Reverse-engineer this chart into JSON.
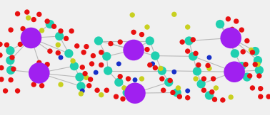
{
  "bg_color": "#f0f0f0",
  "bond_color": "#b8b8b8",
  "bond_lw": 0.8,
  "figsize": [
    3.78,
    1.62
  ],
  "dpi": 100,
  "xlim": [
    0.0,
    1.0
  ],
  "ylim": [
    0.0,
    1.0
  ],
  "atoms": {
    "La": {
      "color": "#a020f0",
      "ms": 12,
      "zorder": 8
    },
    "P": {
      "color": "#20d0b0",
      "ms": 5,
      "zorder": 6
    },
    "O": {
      "color": "#e81010",
      "ms": 3,
      "zorder": 7
    },
    "S": {
      "color": "#c8d020",
      "ms": 3,
      "zorder": 7
    },
    "N": {
      "color": "#1830c8",
      "ms": 2.8,
      "zorder": 7
    }
  },
  "La": [
    [
      0.115,
      0.67
    ],
    [
      0.145,
      0.365
    ],
    [
      0.495,
      0.565
    ],
    [
      0.5,
      0.19
    ],
    [
      0.855,
      0.67
    ],
    [
      0.868,
      0.375
    ]
  ],
  "P": [
    [
      0.038,
      0.56
    ],
    [
      0.038,
      0.475
    ],
    [
      0.04,
      0.39
    ],
    [
      0.185,
      0.79
    ],
    [
      0.22,
      0.685
    ],
    [
      0.255,
      0.535
    ],
    [
      0.275,
      0.425
    ],
    [
      0.295,
      0.33
    ],
    [
      0.3,
      0.25
    ],
    [
      0.365,
      0.645
    ],
    [
      0.395,
      0.51
    ],
    [
      0.4,
      0.385
    ],
    [
      0.44,
      0.285
    ],
    [
      0.47,
      0.195
    ],
    [
      0.555,
      0.645
    ],
    [
      0.575,
      0.515
    ],
    [
      0.6,
      0.385
    ],
    [
      0.625,
      0.285
    ],
    [
      0.655,
      0.195
    ],
    [
      0.7,
      0.645
    ],
    [
      0.715,
      0.51
    ],
    [
      0.73,
      0.38
    ],
    [
      0.745,
      0.27
    ],
    [
      0.775,
      0.17
    ],
    [
      0.815,
      0.79
    ],
    [
      0.84,
      0.685
    ],
    [
      0.87,
      0.535
    ],
    [
      0.895,
      0.425
    ],
    [
      0.915,
      0.33
    ],
    [
      0.945,
      0.555
    ],
    [
      0.955,
      0.475
    ],
    [
      0.96,
      0.39
    ]
  ],
  "O": [
    [
      0.065,
      0.88
    ],
    [
      0.1,
      0.895
    ],
    [
      0.145,
      0.875
    ],
    [
      0.04,
      0.74
    ],
    [
      0.085,
      0.75
    ],
    [
      0.0,
      0.615
    ],
    [
      0.025,
      0.61
    ],
    [
      0.075,
      0.615
    ],
    [
      0.0,
      0.52
    ],
    [
      0.045,
      0.5
    ],
    [
      0.005,
      0.41
    ],
    [
      0.05,
      0.4
    ],
    [
      0.005,
      0.31
    ],
    [
      0.04,
      0.305
    ],
    [
      0.02,
      0.21
    ],
    [
      0.065,
      0.21
    ],
    [
      0.125,
      0.83
    ],
    [
      0.175,
      0.815
    ],
    [
      0.2,
      0.77
    ],
    [
      0.225,
      0.73
    ],
    [
      0.265,
      0.73
    ],
    [
      0.245,
      0.665
    ],
    [
      0.285,
      0.6
    ],
    [
      0.32,
      0.595
    ],
    [
      0.31,
      0.545
    ],
    [
      0.345,
      0.515
    ],
    [
      0.375,
      0.545
    ],
    [
      0.34,
      0.445
    ],
    [
      0.375,
      0.435
    ],
    [
      0.305,
      0.415
    ],
    [
      0.315,
      0.36
    ],
    [
      0.335,
      0.31
    ],
    [
      0.33,
      0.255
    ],
    [
      0.36,
      0.215
    ],
    [
      0.395,
      0.215
    ],
    [
      0.43,
      0.16
    ],
    [
      0.455,
      0.14
    ],
    [
      0.495,
      0.14
    ],
    [
      0.445,
      0.335
    ],
    [
      0.475,
      0.315
    ],
    [
      0.41,
      0.62
    ],
    [
      0.445,
      0.635
    ],
    [
      0.495,
      0.72
    ],
    [
      0.525,
      0.7
    ],
    [
      0.52,
      0.54
    ],
    [
      0.545,
      0.57
    ],
    [
      0.555,
      0.435
    ],
    [
      0.575,
      0.41
    ],
    [
      0.6,
      0.315
    ],
    [
      0.63,
      0.3
    ],
    [
      0.605,
      0.215
    ],
    [
      0.64,
      0.195
    ],
    [
      0.665,
      0.16
    ],
    [
      0.695,
      0.15
    ],
    [
      0.675,
      0.635
    ],
    [
      0.715,
      0.655
    ],
    [
      0.695,
      0.555
    ],
    [
      0.725,
      0.535
    ],
    [
      0.735,
      0.435
    ],
    [
      0.77,
      0.43
    ],
    [
      0.755,
      0.315
    ],
    [
      0.79,
      0.315
    ],
    [
      0.755,
      0.215
    ],
    [
      0.785,
      0.2
    ],
    [
      0.795,
      0.135
    ],
    [
      0.825,
      0.13
    ],
    [
      0.845,
      0.835
    ],
    [
      0.875,
      0.815
    ],
    [
      0.86,
      0.745
    ],
    [
      0.895,
      0.74
    ],
    [
      0.88,
      0.645
    ],
    [
      0.915,
      0.645
    ],
    [
      0.9,
      0.55
    ],
    [
      0.935,
      0.545
    ],
    [
      0.91,
      0.44
    ],
    [
      0.945,
      0.44
    ],
    [
      0.925,
      0.34
    ],
    [
      0.96,
      0.34
    ],
    [
      0.935,
      0.235
    ],
    [
      0.965,
      0.23
    ],
    [
      0.965,
      0.16
    ],
    [
      0.995,
      0.16
    ],
    [
      0.185,
      0.555
    ],
    [
      0.215,
      0.54
    ],
    [
      0.145,
      0.455
    ],
    [
      0.175,
      0.44
    ],
    [
      0.125,
      0.36
    ],
    [
      0.16,
      0.345
    ],
    [
      0.125,
      0.265
    ],
    [
      0.155,
      0.255
    ]
  ],
  "S": [
    [
      0.105,
      0.845
    ],
    [
      0.155,
      0.735
    ],
    [
      0.215,
      0.61
    ],
    [
      0.27,
      0.47
    ],
    [
      0.32,
      0.325
    ],
    [
      0.375,
      0.175
    ],
    [
      0.46,
      0.235
    ],
    [
      0.525,
      0.315
    ],
    [
      0.595,
      0.405
    ],
    [
      0.66,
      0.235
    ],
    [
      0.725,
      0.315
    ],
    [
      0.775,
      0.405
    ],
    [
      0.8,
      0.235
    ],
    [
      0.855,
      0.155
    ],
    [
      0.875,
      0.695
    ],
    [
      0.93,
      0.565
    ],
    [
      0.955,
      0.44
    ],
    [
      0.225,
      0.265
    ],
    [
      0.3,
      0.185
    ],
    [
      0.49,
      0.87
    ],
    [
      0.545,
      0.765
    ],
    [
      0.645,
      0.875
    ],
    [
      0.695,
      0.765
    ]
  ],
  "N": [
    [
      0.225,
      0.5
    ],
    [
      0.355,
      0.37
    ],
    [
      0.44,
      0.445
    ],
    [
      0.565,
      0.445
    ],
    [
      0.645,
      0.375
    ],
    [
      0.775,
      0.5
    ],
    [
      0.5,
      0.305
    ],
    [
      0.305,
      0.21
    ],
    [
      0.695,
      0.21
    ]
  ],
  "bonds": [
    [
      [
        0.115,
        0.67
      ],
      [
        0.038,
        0.56
      ]
    ],
    [
      [
        0.115,
        0.67
      ],
      [
        0.038,
        0.475
      ]
    ],
    [
      [
        0.115,
        0.67
      ],
      [
        0.22,
        0.685
      ]
    ],
    [
      [
        0.115,
        0.67
      ],
      [
        0.255,
        0.535
      ]
    ],
    [
      [
        0.115,
        0.67
      ],
      [
        0.185,
        0.79
      ]
    ],
    [
      [
        0.115,
        0.67
      ],
      [
        0.185,
        0.555
      ]
    ],
    [
      [
        0.115,
        0.67
      ],
      [
        0.145,
        0.455
      ]
    ],
    [
      [
        0.145,
        0.365
      ],
      [
        0.04,
        0.39
      ]
    ],
    [
      [
        0.145,
        0.365
      ],
      [
        0.275,
        0.425
      ]
    ],
    [
      [
        0.145,
        0.365
      ],
      [
        0.295,
        0.33
      ]
    ],
    [
      [
        0.145,
        0.365
      ],
      [
        0.3,
        0.25
      ]
    ],
    [
      [
        0.145,
        0.365
      ],
      [
        0.125,
        0.265
      ]
    ],
    [
      [
        0.145,
        0.365
      ],
      [
        0.125,
        0.36
      ]
    ],
    [
      [
        0.495,
        0.565
      ],
      [
        0.365,
        0.645
      ]
    ],
    [
      [
        0.495,
        0.565
      ],
      [
        0.395,
        0.51
      ]
    ],
    [
      [
        0.495,
        0.565
      ],
      [
        0.555,
        0.645
      ]
    ],
    [
      [
        0.495,
        0.565
      ],
      [
        0.575,
        0.515
      ]
    ],
    [
      [
        0.495,
        0.565
      ],
      [
        0.41,
        0.62
      ]
    ],
    [
      [
        0.495,
        0.565
      ],
      [
        0.52,
        0.54
      ]
    ],
    [
      [
        0.5,
        0.19
      ],
      [
        0.44,
        0.285
      ]
    ],
    [
      [
        0.5,
        0.19
      ],
      [
        0.47,
        0.195
      ]
    ],
    [
      [
        0.5,
        0.19
      ],
      [
        0.625,
        0.285
      ]
    ],
    [
      [
        0.5,
        0.19
      ],
      [
        0.655,
        0.195
      ]
    ],
    [
      [
        0.855,
        0.67
      ],
      [
        0.815,
        0.79
      ]
    ],
    [
      [
        0.855,
        0.67
      ],
      [
        0.84,
        0.685
      ]
    ],
    [
      [
        0.855,
        0.67
      ],
      [
        0.87,
        0.535
      ]
    ],
    [
      [
        0.855,
        0.67
      ],
      [
        0.945,
        0.555
      ]
    ],
    [
      [
        0.855,
        0.67
      ],
      [
        0.955,
        0.475
      ]
    ],
    [
      [
        0.868,
        0.375
      ],
      [
        0.895,
        0.425
      ]
    ],
    [
      [
        0.868,
        0.375
      ],
      [
        0.915,
        0.33
      ]
    ],
    [
      [
        0.868,
        0.375
      ],
      [
        0.96,
        0.39
      ]
    ],
    [
      [
        0.868,
        0.375
      ],
      [
        0.745,
        0.27
      ]
    ],
    [
      [
        0.868,
        0.375
      ],
      [
        0.73,
        0.38
      ]
    ],
    [
      [
        0.365,
        0.645
      ],
      [
        0.395,
        0.51
      ]
    ],
    [
      [
        0.395,
        0.51
      ],
      [
        0.4,
        0.385
      ]
    ],
    [
      [
        0.4,
        0.385
      ],
      [
        0.44,
        0.285
      ]
    ],
    [
      [
        0.555,
        0.645
      ],
      [
        0.575,
        0.515
      ]
    ],
    [
      [
        0.575,
        0.515
      ],
      [
        0.6,
        0.385
      ]
    ],
    [
      [
        0.6,
        0.385
      ],
      [
        0.625,
        0.285
      ]
    ],
    [
      [
        0.7,
        0.645
      ],
      [
        0.715,
        0.51
      ]
    ],
    [
      [
        0.715,
        0.51
      ],
      [
        0.73,
        0.38
      ]
    ],
    [
      [
        0.73,
        0.38
      ],
      [
        0.745,
        0.27
      ]
    ],
    [
      [
        0.255,
        0.535
      ],
      [
        0.275,
        0.425
      ]
    ],
    [
      [
        0.275,
        0.425
      ],
      [
        0.295,
        0.33
      ]
    ],
    [
      [
        0.295,
        0.33
      ],
      [
        0.3,
        0.25
      ]
    ],
    [
      [
        0.22,
        0.685
      ],
      [
        0.255,
        0.535
      ]
    ],
    [
      [
        0.038,
        0.56
      ],
      [
        0.038,
        0.475
      ]
    ],
    [
      [
        0.038,
        0.475
      ],
      [
        0.04,
        0.39
      ]
    ],
    [
      [
        0.945,
        0.555
      ],
      [
        0.955,
        0.475
      ]
    ],
    [
      [
        0.955,
        0.475
      ],
      [
        0.96,
        0.39
      ]
    ],
    [
      [
        0.815,
        0.79
      ],
      [
        0.84,
        0.685
      ]
    ],
    [
      [
        0.84,
        0.685
      ],
      [
        0.87,
        0.535
      ]
    ],
    [
      [
        0.87,
        0.535
      ],
      [
        0.895,
        0.425
      ]
    ],
    [
      [
        0.895,
        0.425
      ],
      [
        0.915,
        0.33
      ]
    ],
    [
      [
        0.365,
        0.645
      ],
      [
        0.555,
        0.645
      ]
    ],
    [
      [
        0.575,
        0.515
      ],
      [
        0.715,
        0.51
      ]
    ],
    [
      [
        0.4,
        0.385
      ],
      [
        0.6,
        0.385
      ]
    ],
    [
      [
        0.6,
        0.385
      ],
      [
        0.73,
        0.38
      ]
    ],
    [
      [
        0.7,
        0.645
      ],
      [
        0.855,
        0.67
      ]
    ],
    [
      [
        0.715,
        0.51
      ],
      [
        0.868,
        0.375
      ]
    ]
  ]
}
